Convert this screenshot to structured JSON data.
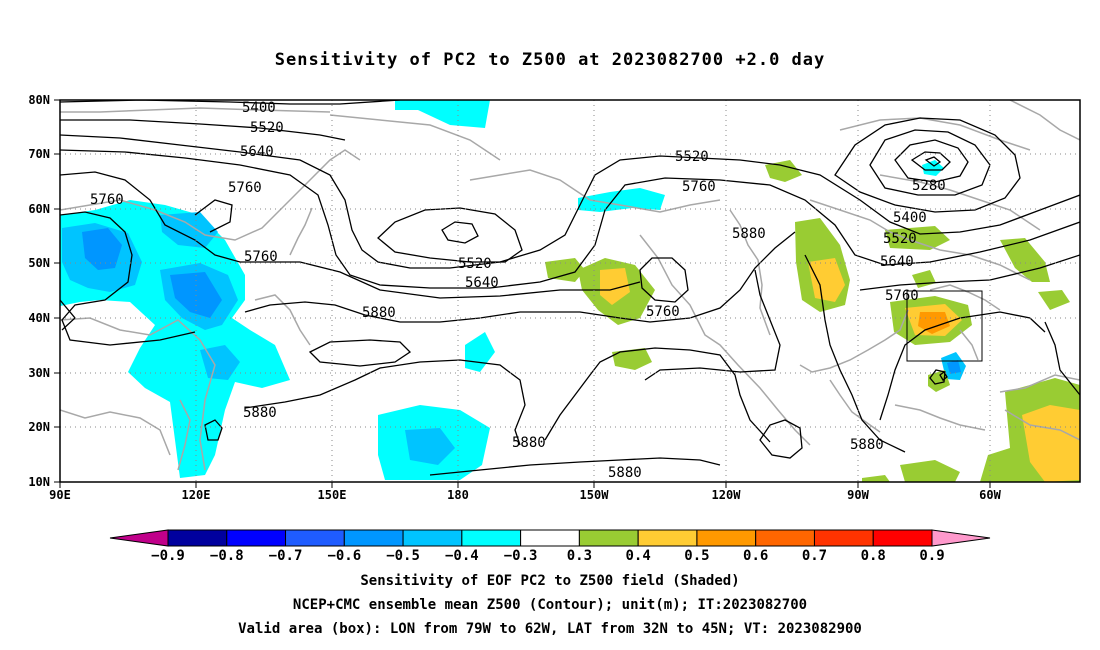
{
  "title": "Sensitivity of PC2 to Z500 at 2023082700 +2.0 day",
  "lat_labels": [
    "80N",
    "70N",
    "60N",
    "50N",
    "40N",
    "30N",
    "20N",
    "10N"
  ],
  "lon_labels": [
    "90E",
    "120E",
    "150E",
    "180",
    "150W",
    "120W",
    "90W",
    "60W"
  ],
  "colorbar": {
    "tick_labels": [
      "−0.9",
      "−0.8",
      "−0.7",
      "−0.6",
      "−0.5",
      "−0.4",
      "−0.3",
      "0.3",
      "0.4",
      "0.5",
      "0.6",
      "0.7",
      "0.8",
      "0.9"
    ],
    "colors": [
      "#c0008a",
      "#00009e",
      "#0000ff",
      "#1f5cff",
      "#0096ff",
      "#00c4ff",
      "#00ffff",
      "#ffffff",
      "#99cc33",
      "#ffcc33",
      "#ff9900",
      "#ff6600",
      "#ff3300",
      "#ff0000",
      "#ff99cc"
    ]
  },
  "contour_labels": [
    "5400",
    "5520",
    "5640",
    "5760",
    "5760",
    "5760",
    "5880",
    "5880",
    "5880",
    "5880",
    "5520",
    "5640",
    "5520",
    "5760",
    "5880",
    "5280",
    "5400",
    "5520",
    "5640",
    "5760",
    "5760",
    "5880"
  ],
  "caption": {
    "line1": "Sensitivity of EOF PC2 to Z500 field (Shaded)",
    "line2": "NCEP+CMC ensemble mean Z500 (Contour); unit(m); IT:2023082700",
    "line3": "Valid area (box): LON from 79W to 62W, LAT from 32N to 45N; VT: 2023082900"
  }
}
